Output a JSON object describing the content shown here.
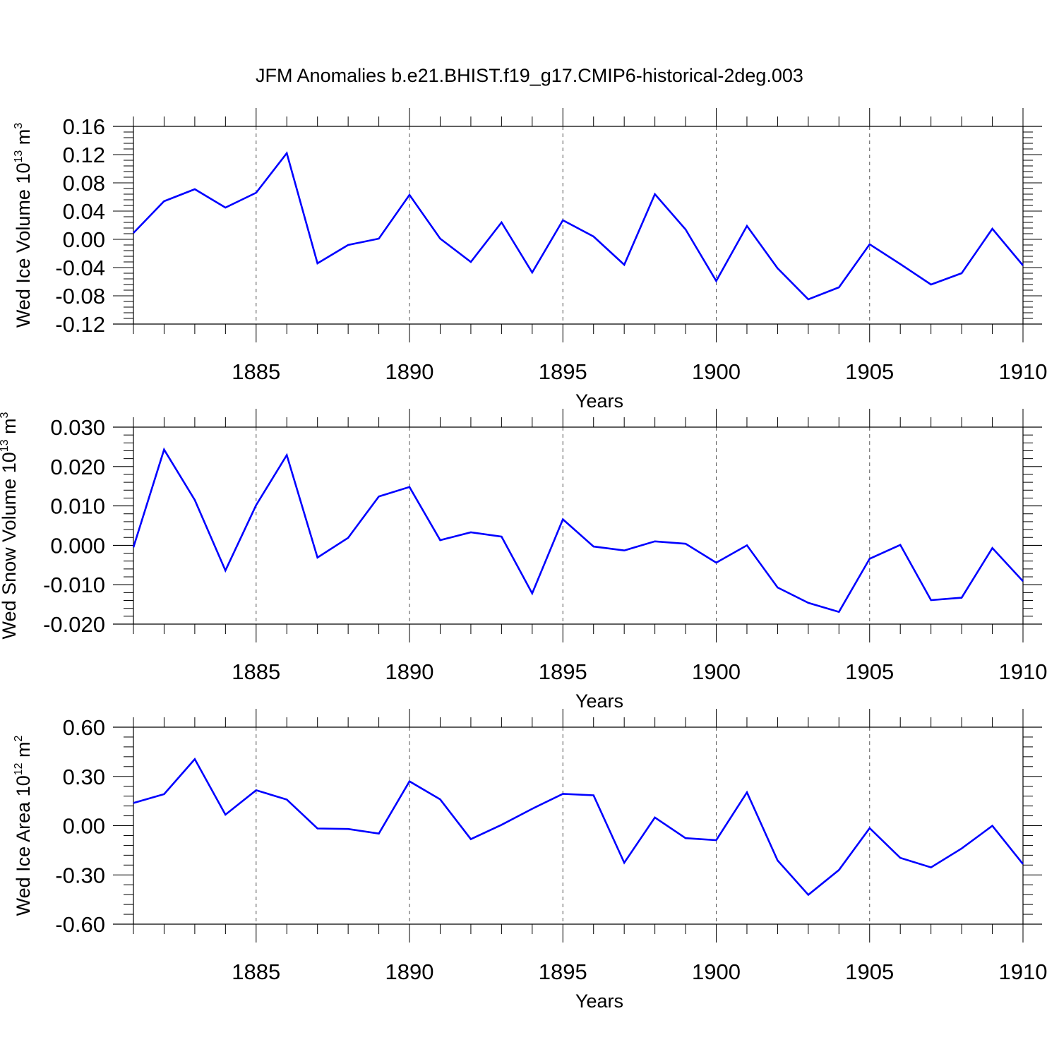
{
  "title": "JFM Anomalies b.e21.BHIST.f19_g17.CMIP6-historical-2deg.003",
  "colors": {
    "series": "#0000ff",
    "frame": "#000000",
    "grid": "#555555"
  },
  "chart_data": [
    {
      "type": "line",
      "ylabel": {
        "text": "Wed Ice Volume 10",
        "exp": "13",
        "unit": "m",
        "unit_exp": "3"
      },
      "xlabel": "Years",
      "xlim": [
        1881,
        1910
      ],
      "ylim": [
        -0.12,
        0.16
      ],
      "yticks": [
        -0.12,
        -0.08,
        -0.04,
        0.0,
        0.04,
        0.08,
        0.12,
        0.16
      ],
      "ytick_labels": [
        "-0.12",
        "-0.08",
        "-0.04",
        "0.00",
        "0.04",
        "0.08",
        "0.12",
        "0.16"
      ],
      "xticks": [
        1885,
        1890,
        1895,
        1900,
        1905,
        1910
      ],
      "xtick_labels": [
        "1885",
        "1890",
        "1895",
        "1900",
        "1905",
        "1910"
      ],
      "grid": "vertical dashed at major x ticks",
      "x": [
        1881,
        1882,
        1883,
        1884,
        1885,
        1886,
        1887,
        1888,
        1889,
        1890,
        1891,
        1892,
        1893,
        1894,
        1895,
        1896,
        1897,
        1898,
        1899,
        1900,
        1901,
        1902,
        1903,
        1904,
        1905,
        1906,
        1907,
        1908,
        1909,
        1910
      ],
      "series": [
        {
          "values": [
            0.009,
            0.054,
            0.071,
            0.045,
            0.066,
            0.122,
            -0.034,
            -0.008,
            0.001,
            0.063,
            0.001,
            -0.032,
            0.024,
            -0.047,
            0.027,
            0.004,
            -0.036,
            0.064,
            0.014,
            -0.059,
            0.019,
            -0.041,
            -0.085,
            -0.068,
            -0.007,
            -0.035,
            -0.064,
            -0.048,
            0.015,
            -0.037
          ]
        }
      ]
    },
    {
      "type": "line",
      "ylabel": {
        "text": "Wed Snow Volume 10",
        "exp": "13",
        "unit": "m",
        "unit_exp": "3"
      },
      "xlabel": "Years",
      "xlim": [
        1881,
        1910
      ],
      "ylim": [
        -0.02,
        0.03
      ],
      "yticks": [
        -0.02,
        -0.01,
        0.0,
        0.01,
        0.02,
        0.03
      ],
      "ytick_labels": [
        "-0.020",
        "-0.010",
        "0.000",
        "0.010",
        "0.020",
        "0.030"
      ],
      "xticks": [
        1885,
        1890,
        1895,
        1900,
        1905,
        1910
      ],
      "xtick_labels": [
        "1885",
        "1890",
        "1895",
        "1900",
        "1905",
        "1910"
      ],
      "grid": "vertical dashed at major x ticks",
      "x": [
        1881,
        1882,
        1883,
        1884,
        1885,
        1886,
        1887,
        1888,
        1889,
        1890,
        1891,
        1892,
        1893,
        1894,
        1895,
        1896,
        1897,
        1898,
        1899,
        1900,
        1901,
        1902,
        1903,
        1904,
        1905,
        1906,
        1907,
        1908,
        1909,
        1910
      ],
      "series": [
        {
          "values": [
            -0.0005,
            0.0243,
            0.0115,
            -0.0064,
            0.0102,
            0.0229,
            -0.0031,
            0.0019,
            0.0124,
            0.0148,
            0.0013,
            0.0033,
            0.0022,
            -0.0122,
            0.0066,
            -0.0003,
            -0.0013,
            0.001,
            0.0004,
            -0.0044,
            0.0,
            -0.0107,
            -0.0146,
            -0.0169,
            -0.0034,
            0.0001,
            -0.0139,
            -0.0133,
            -0.0007,
            -0.0091
          ]
        }
      ]
    },
    {
      "type": "line",
      "ylabel": {
        "text": "Wed Ice Area 10",
        "exp": "12",
        "unit": "m",
        "unit_exp": "2"
      },
      "xlabel": "Years",
      "xlim": [
        1881,
        1910
      ],
      "ylim": [
        -0.6,
        0.6
      ],
      "yticks": [
        -0.6,
        -0.3,
        0.0,
        0.3,
        0.6
      ],
      "ytick_labels": [
        "-0.60",
        "-0.30",
        "0.00",
        "0.30",
        "0.60"
      ],
      "xticks": [
        1885,
        1890,
        1895,
        1900,
        1905,
        1910
      ],
      "xtick_labels": [
        "1885",
        "1890",
        "1895",
        "1900",
        "1905",
        "1910"
      ],
      "grid": "vertical dashed at major x ticks",
      "x": [
        1881,
        1882,
        1883,
        1884,
        1885,
        1886,
        1887,
        1888,
        1889,
        1890,
        1891,
        1892,
        1893,
        1894,
        1895,
        1896,
        1897,
        1898,
        1899,
        1900,
        1901,
        1902,
        1903,
        1904,
        1905,
        1906,
        1907,
        1908,
        1909,
        1910
      ],
      "series": [
        {
          "values": [
            0.138,
            0.192,
            0.405,
            0.067,
            0.216,
            0.159,
            -0.017,
            -0.02,
            -0.048,
            0.27,
            0.16,
            -0.082,
            0.005,
            0.103,
            0.194,
            0.185,
            -0.226,
            0.05,
            -0.076,
            -0.088,
            0.203,
            -0.212,
            -0.421,
            -0.27,
            -0.015,
            -0.196,
            -0.254,
            -0.139,
            -0.001,
            -0.234
          ]
        }
      ]
    }
  ]
}
